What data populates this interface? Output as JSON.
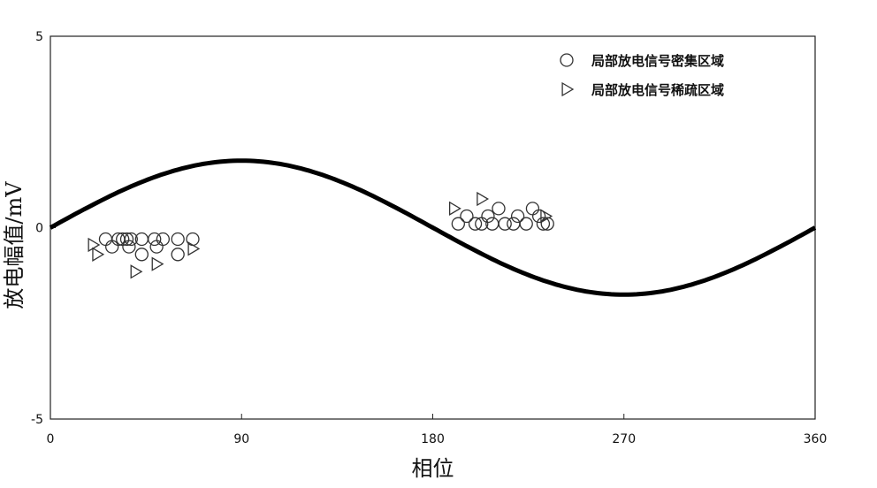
{
  "chart_data": {
    "type": "scatter",
    "title": "",
    "xlabel": "相位",
    "ylabel": "放电幅值/mV",
    "xlim": [
      0,
      360
    ],
    "ylim": [
      -5,
      5
    ],
    "xticks": [
      "0",
      "90",
      "180",
      "270",
      "360"
    ],
    "yticks": [
      "5",
      "0",
      "-5"
    ],
    "grid": false,
    "legend_position": "top-right",
    "reference_curve": {
      "amplitude": 1.75,
      "period": 360,
      "phase_offset": 0,
      "x_range": [
        0,
        360
      ]
    },
    "series": [
      {
        "name": "局部放电信号密集区域",
        "marker": "circle",
        "points": [
          [
            26,
            -0.3
          ],
          [
            29,
            -0.5
          ],
          [
            32,
            -0.3
          ],
          [
            34,
            -0.3
          ],
          [
            36,
            -0.3
          ],
          [
            38,
            -0.3
          ],
          [
            37,
            -0.5
          ],
          [
            43,
            -0.3
          ],
          [
            43,
            -0.7
          ],
          [
            49,
            -0.3
          ],
          [
            50,
            -0.5
          ],
          [
            53,
            -0.3
          ],
          [
            60,
            -0.3
          ],
          [
            60,
            -0.7
          ],
          [
            67,
            -0.3
          ],
          [
            192,
            0.1
          ],
          [
            196,
            0.3
          ],
          [
            200,
            0.1
          ],
          [
            203,
            0.1
          ],
          [
            206,
            0.3
          ],
          [
            208,
            0.1
          ],
          [
            211,
            0.5
          ],
          [
            214,
            0.1
          ],
          [
            218,
            0.1
          ],
          [
            220,
            0.3
          ],
          [
            224,
            0.1
          ],
          [
            227,
            0.5
          ],
          [
            230,
            0.3
          ],
          [
            232,
            0.1
          ],
          [
            234,
            0.1
          ]
        ]
      },
      {
        "name": "局部放电信号稀疏区域",
        "marker": "triangle-right",
        "points": [
          [
            20,
            -0.45
          ],
          [
            22,
            -0.7
          ],
          [
            40,
            -1.15
          ],
          [
            50,
            -0.95
          ],
          [
            67,
            -0.55
          ],
          [
            190,
            0.5
          ],
          [
            203,
            0.75
          ],
          [
            233,
            0.3
          ]
        ]
      }
    ]
  }
}
